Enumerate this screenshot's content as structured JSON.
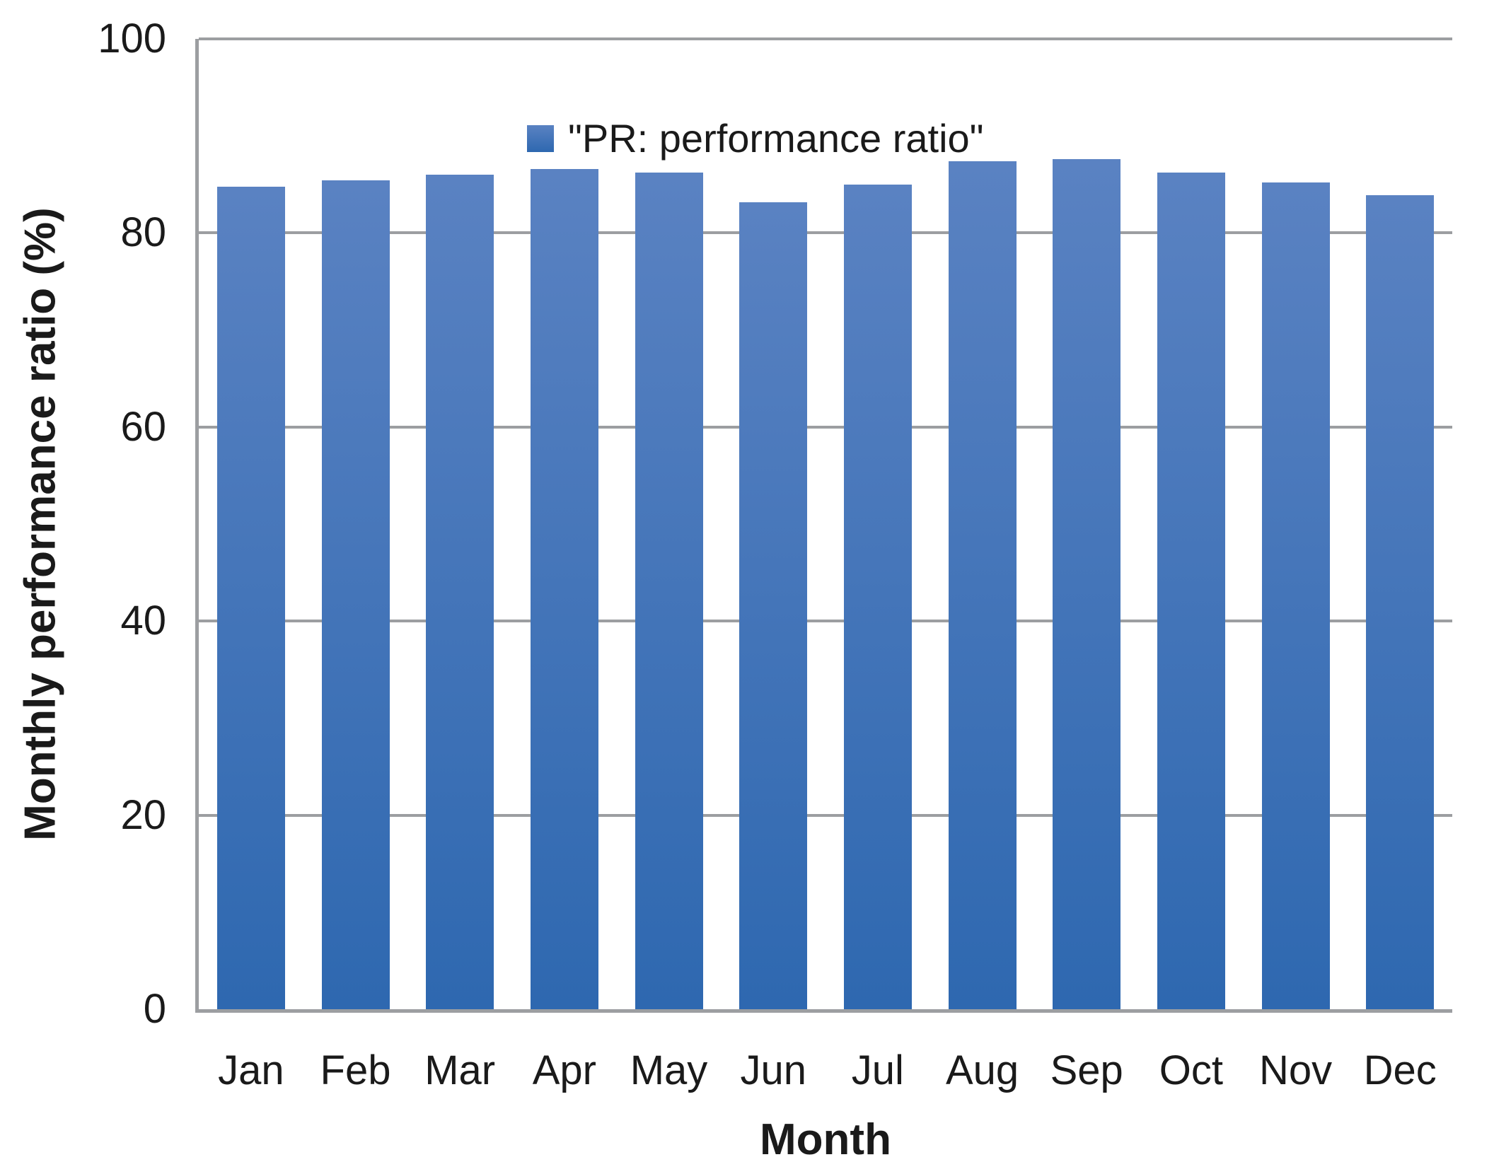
{
  "chart_data": {
    "type": "bar",
    "title": "",
    "xlabel": "Month",
    "ylabel": "Monthly performance ratio (%)",
    "legend_entries": [
      "\"PR: performance ratio\""
    ],
    "legend_position": "top-center-inside",
    "categories": [
      "Jan",
      "Feb",
      "Mar",
      "Apr",
      "May",
      "Jun",
      "Jul",
      "Aug",
      "Sep",
      "Oct",
      "Nov",
      "Dec"
    ],
    "series": [
      {
        "name": "\"PR: performance ratio\"",
        "values": [
          84.8,
          85.4,
          86.0,
          86.6,
          86.2,
          83.2,
          85.0,
          87.4,
          87.6,
          86.2,
          85.2,
          83.9
        ]
      }
    ],
    "ylim": [
      0,
      100
    ],
    "yticks": [
      0,
      20,
      40,
      60,
      80,
      100
    ],
    "grid": true,
    "colors": {
      "bar_gradient_top": "#5a82c2",
      "bar_gradient_bottom": "#2e68b0",
      "axis_line": "#9c9ea1",
      "text": "#1a1a1a"
    }
  }
}
